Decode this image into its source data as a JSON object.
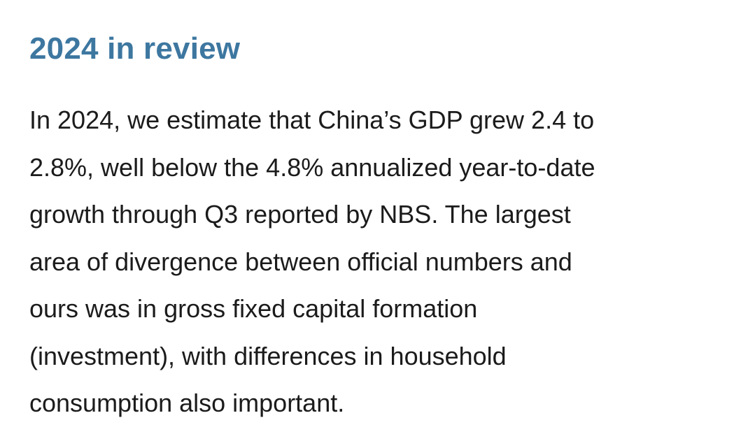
{
  "article": {
    "heading": "2024 in review",
    "paragraph_lines": [
      "In 2024, we estimate that China’s GDP grew 2.4 to",
      "2.8%, well below the 4.8% annualized year-to-date",
      "growth through Q3 reported by NBS. The largest",
      "area of divergence between official numbers and",
      "ours was in gross fixed capital formation",
      "(investment), with differences in household",
      "consumption also important."
    ]
  }
}
